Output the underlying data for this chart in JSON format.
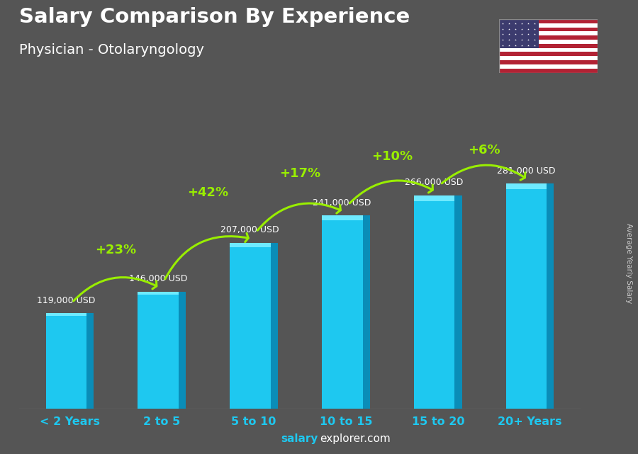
{
  "title": "Salary Comparison By Experience",
  "subtitle": "Physician - Otolaryngology",
  "categories": [
    "< 2 Years",
    "2 to 5",
    "5 to 10",
    "10 to 15",
    "15 to 20",
    "20+ Years"
  ],
  "values": [
    119000,
    146000,
    207000,
    241000,
    266000,
    281000
  ],
  "labels": [
    "119,000 USD",
    "146,000 USD",
    "207,000 USD",
    "241,000 USD",
    "266,000 USD",
    "281,000 USD"
  ],
  "pct_changes": [
    "+23%",
    "+42%",
    "+17%",
    "+10%",
    "+6%"
  ],
  "bar_color": "#1EC8F0",
  "bar_color_dark": "#0A8DB8",
  "bar_color_top": "#6EEAFF",
  "background_color": "#555555",
  "title_color": "#FFFFFF",
  "subtitle_color": "#FFFFFF",
  "label_color": "#FFFFFF",
  "pct_color": "#99EE00",
  "xticklabel_color": "#1EC8F0",
  "right_label": "Average Yearly Salary",
  "ylim_max": 340000,
  "bar_width": 0.52
}
